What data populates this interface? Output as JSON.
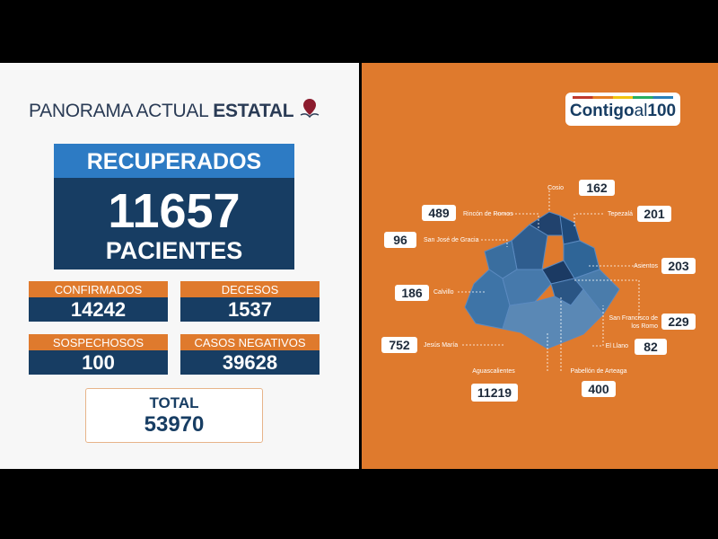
{
  "header": {
    "title_light": "PANORAMA ACTUAL",
    "title_bold": "ESTATAL"
  },
  "recuperados": {
    "label": "RECUPERADOS",
    "value": 11657,
    "unit": "PACIENTES"
  },
  "stats": [
    {
      "label": "CONFIRMADOS",
      "value": 14242
    },
    {
      "label": "DECESOS",
      "value": 1537
    },
    {
      "label": "SOSPECHOSOS",
      "value": 100
    },
    {
      "label": "CASOS NEGATIVOS",
      "value": 39628
    }
  ],
  "total": {
    "label": "TOTAL",
    "value": 53970
  },
  "logo": {
    "word": "Contigo",
    "connector": "al",
    "number": 100
  },
  "municipalities": [
    {
      "name": "Cosio",
      "cases": 162
    },
    {
      "name": "Rincón de Romos",
      "cases": 489
    },
    {
      "name": "Tepezalá",
      "cases": 201
    },
    {
      "name": "San José de Gracia",
      "cases": 96
    },
    {
      "name": "Asientos",
      "cases": 203
    },
    {
      "name": "Calvillo",
      "cases": 186
    },
    {
      "name": "San Francisco de los Romo",
      "cases": 229
    },
    {
      "name": "Jesús María",
      "cases": 752
    },
    {
      "name": "El Llano",
      "cases": 82
    },
    {
      "name": "Aguascalientes",
      "cases": 11219
    },
    {
      "name": "Pabellón de Arteaga",
      "cases": 400
    }
  ]
}
